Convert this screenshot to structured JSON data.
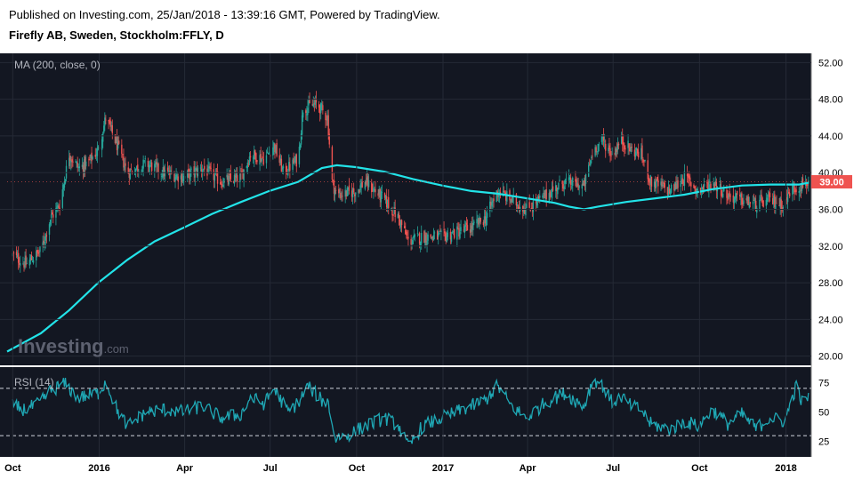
{
  "header": {
    "published": "Published on Investing.com, 25/Jan/2018 - 13:39:16 GMT, Powered by TradingView.",
    "instrument": "Firefly AB, Sweden, Stockholm:FFLY, D"
  },
  "panes": {
    "price_label": "MA (200, close, 0)",
    "rsi_label": "RSI (14)",
    "watermark_main": "Investing",
    "watermark_suffix": ".com",
    "last_price_label": "39.00"
  },
  "colors": {
    "background": "#131722",
    "up": "#26a69a",
    "down": "#ef5350",
    "ma": "#22e3e8",
    "rsi": "#1fa7b4",
    "last_badge": "#ef5350"
  },
  "chart_data": [
    {
      "type": "candlestick",
      "title": "Firefly AB, Sweden, Stockholm:FFLY, D",
      "ylim": [
        19,
        53
      ],
      "y_ticks": [
        "52.00",
        "48.00",
        "44.00",
        "40.00",
        "36.00",
        "32.00",
        "28.00",
        "24.00",
        "20.00"
      ],
      "x_ticks": [
        "Oct",
        "2016",
        "Apr",
        "Jul",
        "Oct",
        "2017",
        "Apr",
        "Jul",
        "Oct",
        "2018"
      ],
      "last_price": 39.0,
      "close_path": [
        [
          "2015-10-01",
          31.0
        ],
        [
          "2015-10-15",
          30.0
        ],
        [
          "2015-10-31",
          31.5
        ],
        [
          "2015-11-10",
          35.0
        ],
        [
          "2015-11-20",
          36.5
        ],
        [
          "2015-11-30",
          42.0
        ],
        [
          "2015-12-10",
          40.5
        ],
        [
          "2015-12-20",
          41.0
        ],
        [
          "2015-12-31",
          42.5
        ],
        [
          "2016-01-08",
          46.0
        ],
        [
          "2016-01-20",
          43.0
        ],
        [
          "2016-01-31",
          40.0
        ],
        [
          "2016-02-20",
          41.0
        ],
        [
          "2016-03-10",
          40.0
        ],
        [
          "2016-03-31",
          39.5
        ],
        [
          "2016-04-20",
          40.5
        ],
        [
          "2016-05-10",
          39.0
        ],
        [
          "2016-05-31",
          39.5
        ],
        [
          "2016-06-10",
          42.0
        ],
        [
          "2016-06-25",
          41.5
        ],
        [
          "2016-07-05",
          43.0
        ],
        [
          "2016-07-15",
          40.0
        ],
        [
          "2016-07-31",
          41.5
        ],
        [
          "2016-08-05",
          47.0
        ],
        [
          "2016-08-20",
          47.5
        ],
        [
          "2016-08-31",
          46.0
        ],
        [
          "2016-09-05",
          39.0
        ],
        [
          "2016-09-10",
          37.5
        ],
        [
          "2016-09-30",
          38.0
        ],
        [
          "2016-10-10",
          39.0
        ],
        [
          "2016-10-31",
          37.0
        ],
        [
          "2016-11-15",
          35.0
        ],
        [
          "2016-11-25",
          32.5
        ],
        [
          "2016-12-10",
          33.0
        ],
        [
          "2016-12-31",
          33.0
        ],
        [
          "2017-01-31",
          34.0
        ],
        [
          "2017-02-15",
          35.0
        ],
        [
          "2017-02-28",
          38.0
        ],
        [
          "2017-03-15",
          37.0
        ],
        [
          "2017-03-31",
          36.0
        ],
        [
          "2017-04-20",
          37.5
        ],
        [
          "2017-05-10",
          39.0
        ],
        [
          "2017-05-31",
          38.5
        ],
        [
          "2017-06-10",
          42.5
        ],
        [
          "2017-06-20",
          43.5
        ],
        [
          "2017-06-30",
          42.0
        ],
        [
          "2017-07-10",
          43.5
        ],
        [
          "2017-07-20",
          42.5
        ],
        [
          "2017-07-31",
          42.0
        ],
        [
          "2017-08-10",
          39.0
        ],
        [
          "2017-08-31",
          38.0
        ],
        [
          "2017-09-15",
          39.5
        ],
        [
          "2017-09-30",
          38.0
        ],
        [
          "2017-10-15",
          39.0
        ],
        [
          "2017-10-31",
          37.5
        ],
        [
          "2017-11-15",
          37.0
        ],
        [
          "2017-11-30",
          36.5
        ],
        [
          "2017-12-15",
          37.0
        ],
        [
          "2017-12-31",
          36.5
        ],
        [
          "2018-01-05",
          38.0
        ],
        [
          "2018-01-15",
          38.5
        ],
        [
          "2018-01-25",
          39.0
        ]
      ],
      "series": [
        {
          "name": "MA (200, close, 0)",
          "points": [
            [
              "2015-09-25",
              20.5
            ],
            [
              "2015-10-31",
              22.5
            ],
            [
              "2015-11-30",
              25.0
            ],
            [
              "2015-12-31",
              28.0
            ],
            [
              "2016-01-31",
              30.5
            ],
            [
              "2016-02-29",
              32.5
            ],
            [
              "2016-03-31",
              34.0
            ],
            [
              "2016-04-30",
              35.5
            ],
            [
              "2016-05-31",
              36.8
            ],
            [
              "2016-06-30",
              38.0
            ],
            [
              "2016-07-31",
              39.0
            ],
            [
              "2016-08-25",
              40.5
            ],
            [
              "2016-09-10",
              40.8
            ],
            [
              "2016-09-30",
              40.6
            ],
            [
              "2016-10-31",
              40.1
            ],
            [
              "2016-11-30",
              39.3
            ],
            [
              "2016-12-31",
              38.6
            ],
            [
              "2017-01-31",
              38.0
            ],
            [
              "2017-02-28",
              37.7
            ],
            [
              "2017-03-31",
              37.2
            ],
            [
              "2017-04-30",
              36.7
            ],
            [
              "2017-05-15",
              36.3
            ],
            [
              "2017-05-31",
              36.0
            ],
            [
              "2017-06-15",
              36.3
            ],
            [
              "2017-07-15",
              36.8
            ],
            [
              "2017-08-15",
              37.2
            ],
            [
              "2017-09-15",
              37.6
            ],
            [
              "2017-10-15",
              38.2
            ],
            [
              "2017-11-15",
              38.6
            ],
            [
              "2017-12-15",
              38.7
            ],
            [
              "2018-01-15",
              38.7
            ],
            [
              "2018-01-25",
              38.9
            ]
          ]
        }
      ]
    },
    {
      "type": "line",
      "title": "RSI (14)",
      "ylim": [
        12,
        88
      ],
      "y_ticks": [
        75,
        50,
        25
      ],
      "bands": [
        70,
        30
      ],
      "series": [
        {
          "name": "RSI (14)",
          "points": [
            [
              "2015-10-01",
              55
            ],
            [
              "2015-10-15",
              52
            ],
            [
              "2015-10-31",
              58
            ],
            [
              "2015-11-10",
              68
            ],
            [
              "2015-11-25",
              74
            ],
            [
              "2015-12-10",
              62
            ],
            [
              "2015-12-31",
              66
            ],
            [
              "2016-01-08",
              76
            ],
            [
              "2016-01-20",
              52
            ],
            [
              "2016-01-31",
              38
            ],
            [
              "2016-02-20",
              50
            ],
            [
              "2016-03-10",
              52
            ],
            [
              "2016-03-31",
              50
            ],
            [
              "2016-04-20",
              55
            ],
            [
              "2016-05-10",
              45
            ],
            [
              "2016-05-31",
              48
            ],
            [
              "2016-06-10",
              62
            ],
            [
              "2016-06-25",
              57
            ],
            [
              "2016-07-05",
              70
            ],
            [
              "2016-07-20",
              50
            ],
            [
              "2016-07-31",
              58
            ],
            [
              "2016-08-10",
              72
            ],
            [
              "2016-08-25",
              60
            ],
            [
              "2016-09-01",
              58
            ],
            [
              "2016-09-08",
              28
            ],
            [
              "2016-09-20",
              30
            ],
            [
              "2016-10-10",
              38
            ],
            [
              "2016-10-31",
              45
            ],
            [
              "2016-11-15",
              38
            ],
            [
              "2016-11-25",
              20
            ],
            [
              "2016-12-10",
              38
            ],
            [
              "2016-12-31",
              45
            ],
            [
              "2017-01-31",
              55
            ],
            [
              "2017-02-15",
              60
            ],
            [
              "2017-02-28",
              72
            ],
            [
              "2017-03-15",
              55
            ],
            [
              "2017-03-31",
              45
            ],
            [
              "2017-04-20",
              58
            ],
            [
              "2017-05-10",
              66
            ],
            [
              "2017-05-31",
              55
            ],
            [
              "2017-06-10",
              78
            ],
            [
              "2017-06-20",
              72
            ],
            [
              "2017-06-30",
              58
            ],
            [
              "2017-07-10",
              63
            ],
            [
              "2017-07-20",
              55
            ],
            [
              "2017-07-31",
              52
            ],
            [
              "2017-08-10",
              40
            ],
            [
              "2017-08-31",
              35
            ],
            [
              "2017-09-15",
              42
            ],
            [
              "2017-09-30",
              38
            ],
            [
              "2017-10-15",
              52
            ],
            [
              "2017-10-31",
              40
            ],
            [
              "2017-11-15",
              48
            ],
            [
              "2017-11-30",
              36
            ],
            [
              "2017-12-15",
              45
            ],
            [
              "2017-12-31",
              42
            ],
            [
              "2018-01-05",
              55
            ],
            [
              "2018-01-12",
              72
            ],
            [
              "2018-01-18",
              58
            ],
            [
              "2018-01-25",
              63
            ]
          ]
        }
      ]
    }
  ]
}
